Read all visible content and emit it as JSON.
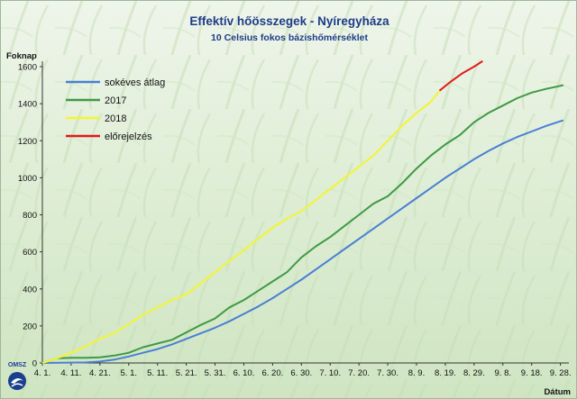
{
  "chart_data": {
    "type": "line",
    "title": "Effektív hőösszegek - Nyíregyháza",
    "subtitle": "10 Celsius fokos bázishőmérséklet",
    "ylabel": "Foknap",
    "xlabel": "Dátum",
    "ylim": [
      0,
      1600
    ],
    "yticks": [
      0,
      200,
      400,
      600,
      800,
      1000,
      1200,
      1400,
      1600
    ],
    "xlim": [
      0,
      182
    ],
    "xticks": [
      {
        "label": "4. 1.",
        "day": 0
      },
      {
        "label": "4. 11.",
        "day": 10
      },
      {
        "label": "4. 21.",
        "day": 20
      },
      {
        "label": "5. 1.",
        "day": 30
      },
      {
        "label": "5. 11.",
        "day": 40
      },
      {
        "label": "5. 21.",
        "day": 50
      },
      {
        "label": "5. 31.",
        "day": 60
      },
      {
        "label": "6. 10.",
        "day": 70
      },
      {
        "label": "6. 20.",
        "day": 80
      },
      {
        "label": "6. 30.",
        "day": 90
      },
      {
        "label": "7. 10.",
        "day": 100
      },
      {
        "label": "7. 20.",
        "day": 110
      },
      {
        "label": "7. 30.",
        "day": 120
      },
      {
        "label": "8. 9.",
        "day": 130
      },
      {
        "label": "8. 19.",
        "day": 140
      },
      {
        "label": "8. 29.",
        "day": 150
      },
      {
        "label": "9. 8.",
        "day": 160
      },
      {
        "label": "9. 18.",
        "day": 170
      },
      {
        "label": "9. 28.",
        "day": 180
      }
    ],
    "grid": false,
    "legend": "top-left",
    "series": [
      {
        "name": "sokéves átlag",
        "color": "#4a7fd4",
        "points": [
          [
            0,
            0
          ],
          [
            15,
            3
          ],
          [
            20,
            8
          ],
          [
            25,
            18
          ],
          [
            30,
            35
          ],
          [
            35,
            55
          ],
          [
            40,
            75
          ],
          [
            45,
            100
          ],
          [
            50,
            130
          ],
          [
            55,
            160
          ],
          [
            60,
            190
          ],
          [
            65,
            225
          ],
          [
            70,
            265
          ],
          [
            75,
            305
          ],
          [
            80,
            350
          ],
          [
            85,
            400
          ],
          [
            90,
            450
          ],
          [
            95,
            505
          ],
          [
            100,
            560
          ],
          [
            105,
            615
          ],
          [
            110,
            670
          ],
          [
            115,
            725
          ],
          [
            120,
            780
          ],
          [
            125,
            835
          ],
          [
            130,
            890
          ],
          [
            135,
            945
          ],
          [
            140,
            1000
          ],
          [
            145,
            1050
          ],
          [
            150,
            1100
          ],
          [
            155,
            1145
          ],
          [
            160,
            1185
          ],
          [
            165,
            1220
          ],
          [
            170,
            1250
          ],
          [
            175,
            1280
          ],
          [
            181,
            1310
          ]
        ]
      },
      {
        "name": "2017",
        "color": "#3f9a45",
        "points": [
          [
            0,
            0
          ],
          [
            5,
            25
          ],
          [
            10,
            28
          ],
          [
            15,
            28
          ],
          [
            20,
            30
          ],
          [
            25,
            40
          ],
          [
            30,
            55
          ],
          [
            35,
            85
          ],
          [
            40,
            105
          ],
          [
            45,
            125
          ],
          [
            50,
            165
          ],
          [
            55,
            205
          ],
          [
            60,
            240
          ],
          [
            65,
            300
          ],
          [
            70,
            340
          ],
          [
            75,
            390
          ],
          [
            80,
            440
          ],
          [
            85,
            490
          ],
          [
            90,
            570
          ],
          [
            95,
            630
          ],
          [
            100,
            680
          ],
          [
            105,
            740
          ],
          [
            110,
            800
          ],
          [
            115,
            860
          ],
          [
            120,
            900
          ],
          [
            125,
            970
          ],
          [
            130,
            1050
          ],
          [
            135,
            1120
          ],
          [
            140,
            1180
          ],
          [
            145,
            1230
          ],
          [
            150,
            1300
          ],
          [
            155,
            1350
          ],
          [
            160,
            1390
          ],
          [
            165,
            1430
          ],
          [
            170,
            1460
          ],
          [
            175,
            1480
          ],
          [
            181,
            1500
          ]
        ]
      },
      {
        "name": "2018",
        "color": "#f4f434",
        "points": [
          [
            0,
            0
          ],
          [
            5,
            25
          ],
          [
            10,
            55
          ],
          [
            15,
            90
          ],
          [
            20,
            130
          ],
          [
            25,
            160
          ],
          [
            30,
            210
          ],
          [
            35,
            260
          ],
          [
            40,
            300
          ],
          [
            45,
            340
          ],
          [
            50,
            370
          ],
          [
            55,
            430
          ],
          [
            60,
            490
          ],
          [
            65,
            550
          ],
          [
            70,
            610
          ],
          [
            75,
            670
          ],
          [
            80,
            730
          ],
          [
            85,
            780
          ],
          [
            90,
            820
          ],
          [
            95,
            880
          ],
          [
            100,
            940
          ],
          [
            105,
            1000
          ],
          [
            110,
            1060
          ],
          [
            115,
            1120
          ],
          [
            120,
            1200
          ],
          [
            125,
            1280
          ],
          [
            130,
            1350
          ],
          [
            135,
            1410
          ],
          [
            138,
            1470
          ]
        ]
      },
      {
        "name": "előrejelzés",
        "color": "#e01b1b",
        "points": [
          [
            138,
            1470
          ],
          [
            142,
            1520
          ],
          [
            146,
            1565
          ],
          [
            150,
            1600
          ],
          [
            153,
            1630
          ]
        ]
      }
    ]
  },
  "logo": {
    "text": "OMSZ"
  }
}
